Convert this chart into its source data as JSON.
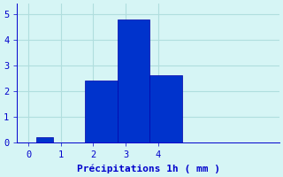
{
  "bin_edges": [
    0,
    0.5,
    1.5,
    2.5,
    3.5,
    4.5
  ],
  "counts": [
    0.2,
    0,
    2.4,
    4.8,
    2.6
  ],
  "bar_color": "#0033cc",
  "bar_edge_color": "#0000aa",
  "xlabel": "Précipitations 1h ( mm )",
  "xlim": [
    -0.6,
    7.5
  ],
  "ylim": [
    0,
    5.4
  ],
  "yticks": [
    0,
    1,
    2,
    3,
    4,
    5
  ],
  "xticks": [
    -0.25,
    0.75,
    1.75,
    2.75,
    3.75
  ],
  "xticklabels": [
    "0",
    "1",
    "2",
    "3",
    "4"
  ],
  "background_color": "#d6f5f5",
  "grid_color": "#b0dede",
  "text_color": "#0000cc",
  "xlabel_fontsize": 8,
  "tick_fontsize": 7.5
}
